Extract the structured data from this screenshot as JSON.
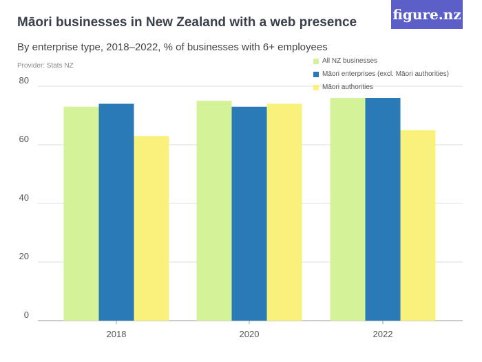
{
  "header": {
    "title": "Māori businesses in New Zealand with a web presence",
    "subtitle": "By enterprise type, 2018–2022, % of businesses with 6+ employees",
    "provider": "Provider: Stats NZ",
    "logo": "figure.nz"
  },
  "chart_data": {
    "type": "bar",
    "categories": [
      "2018",
      "2020",
      "2022"
    ],
    "series": [
      {
        "name": "All NZ businesses",
        "values": [
          73,
          75,
          76
        ],
        "color": "#d4f298"
      },
      {
        "name": "Māori enterprises (excl. Māori authorities)",
        "values": [
          74,
          73,
          76
        ],
        "color": "#2a7ab8"
      },
      {
        "name": "Māori authorities",
        "values": [
          63,
          74,
          65
        ],
        "color": "#f8f27c"
      }
    ],
    "ylim": [
      0,
      80
    ],
    "yticks": [
      0,
      20,
      40,
      60,
      80
    ],
    "grid": true,
    "legend": "top-right"
  }
}
